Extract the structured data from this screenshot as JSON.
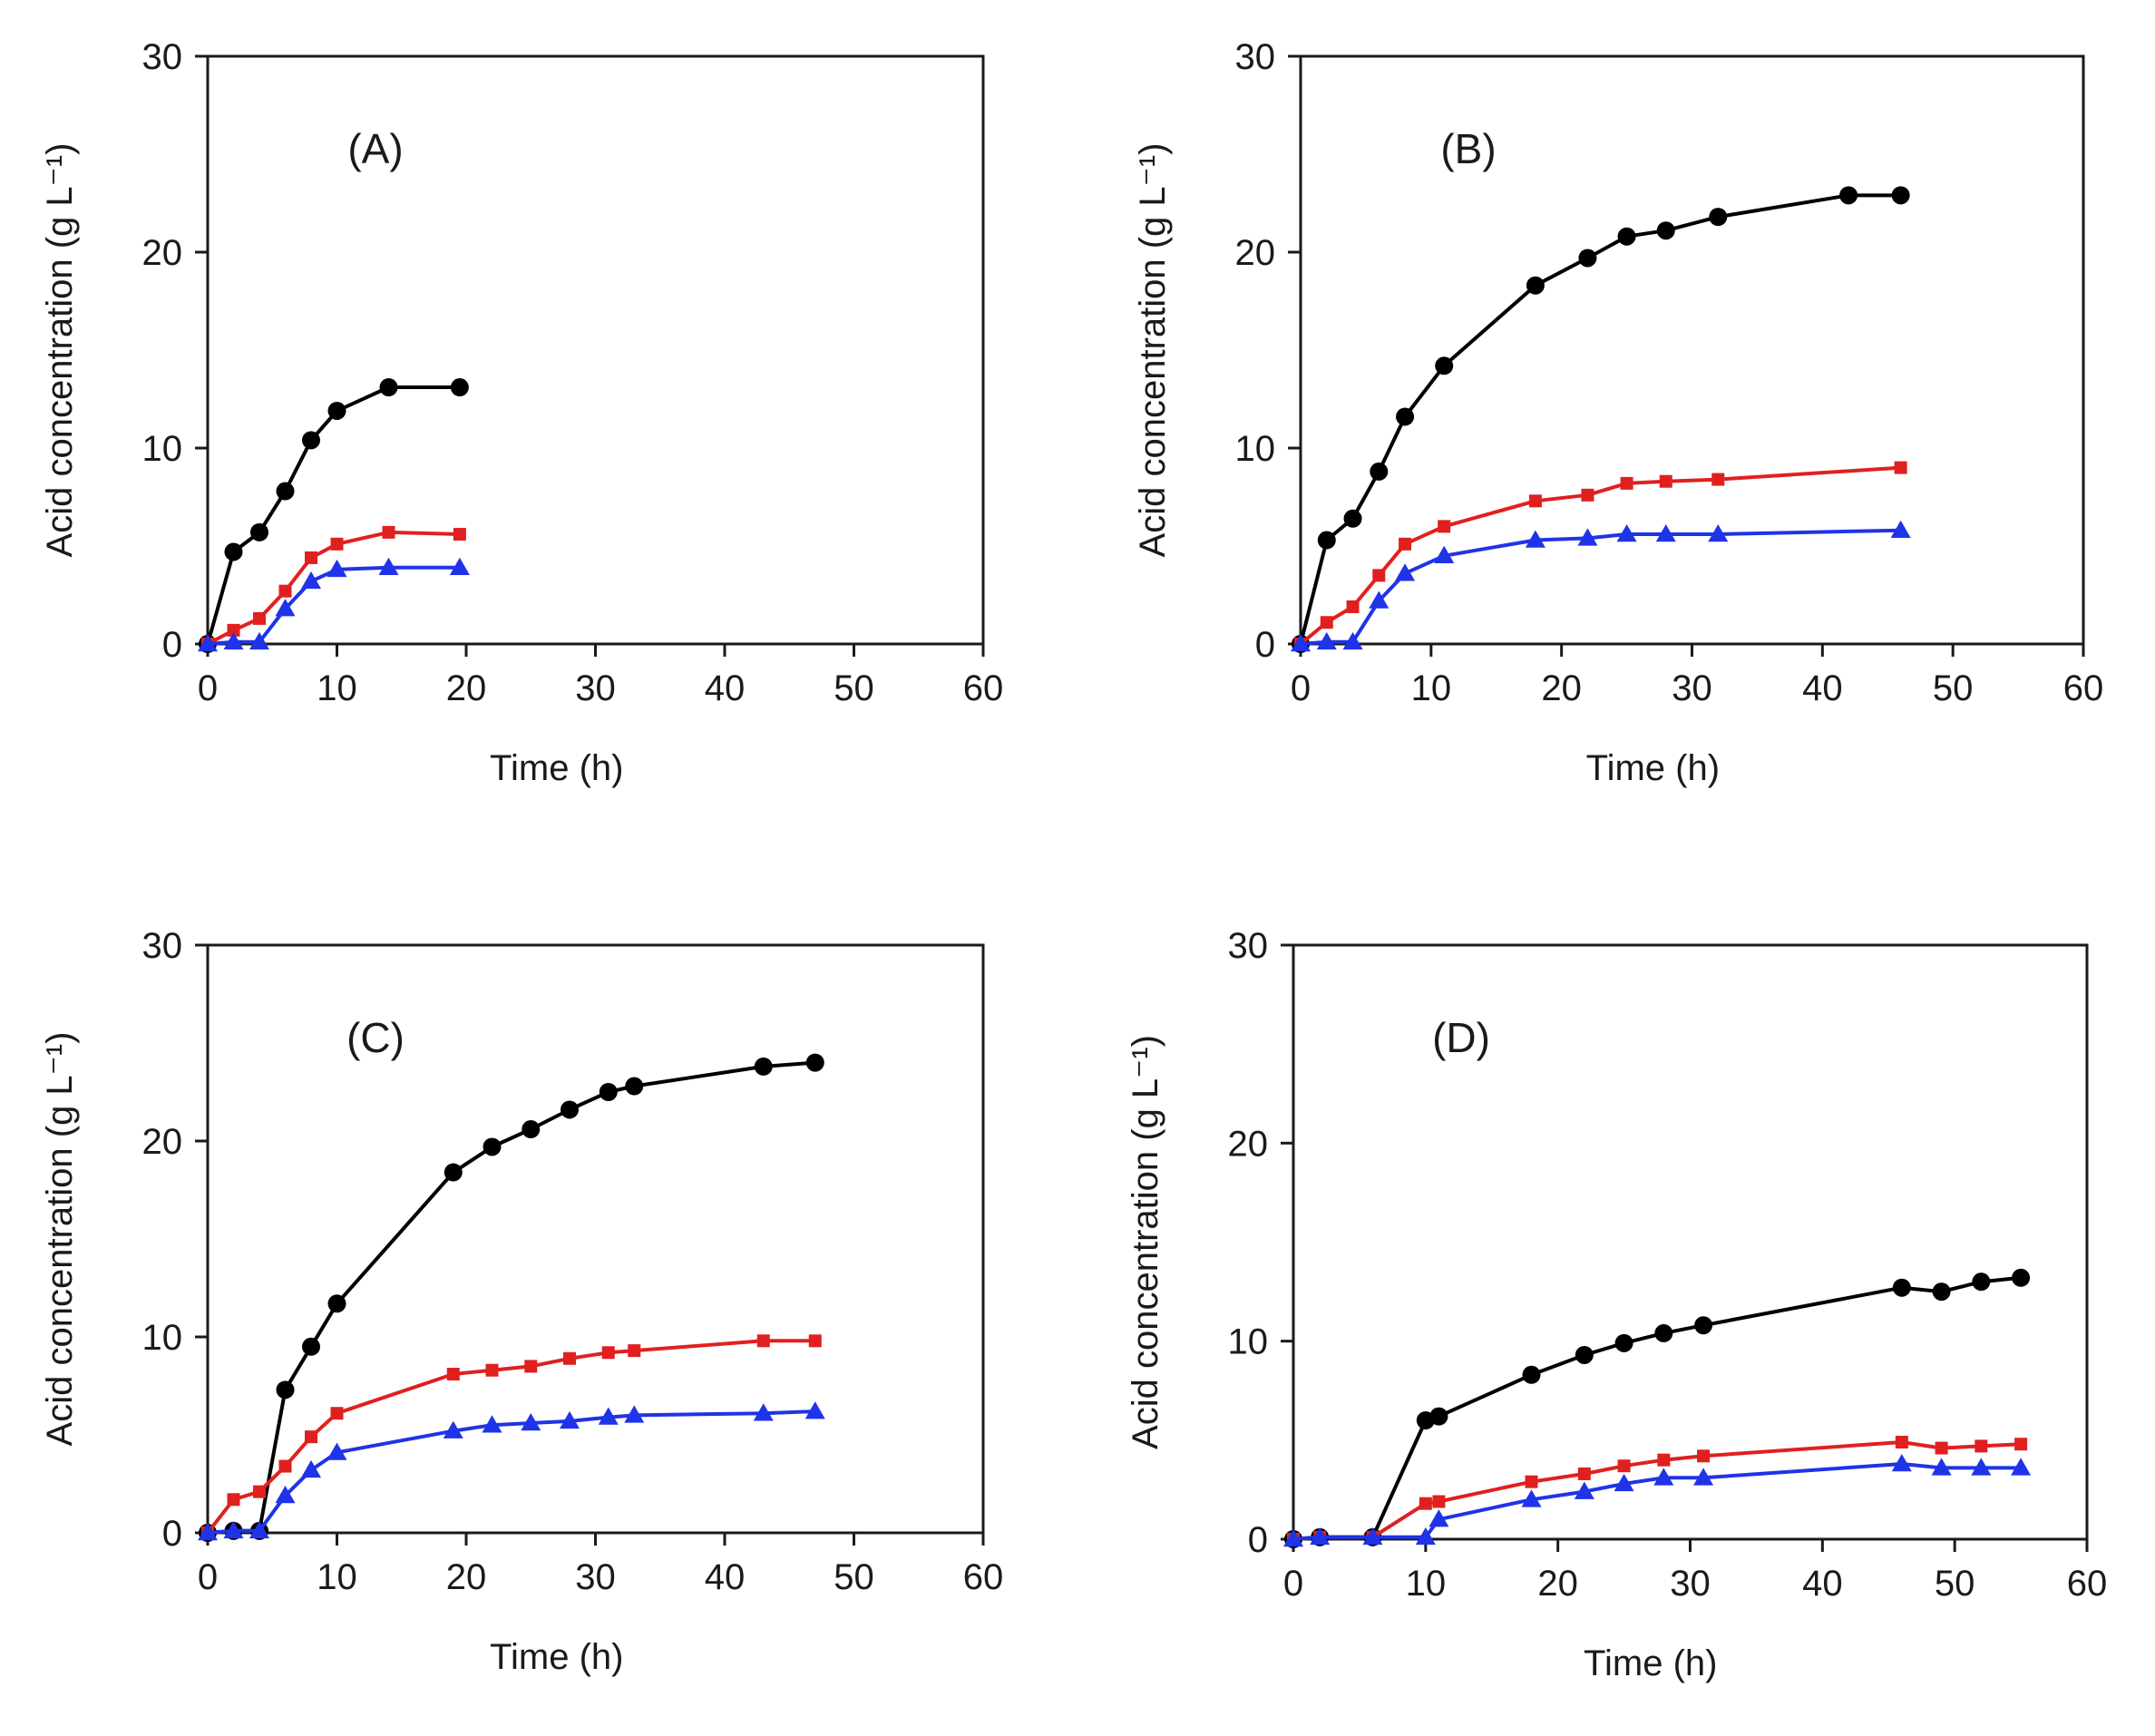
{
  "chart_data": [
    {
      "type": "line",
      "panel_label": "(A)",
      "xlabel": "Time (h)",
      "ylabel": "Acid concentration (g L⁻¹)",
      "xlim": [
        0,
        60
      ],
      "ylim": [
        0,
        30
      ],
      "xticks": [
        "0",
        "10",
        "20",
        "30",
        "40",
        "50",
        "60"
      ],
      "yticks": [
        "0",
        "10",
        "20",
        "30"
      ],
      "series": [
        {
          "name": "black",
          "marker": "circle",
          "color": "#000000",
          "x": [
            0,
            2,
            4,
            6,
            8,
            10,
            14,
            19.5
          ],
          "y": [
            0,
            4.7,
            5.7,
            7.8,
            10.4,
            11.9,
            13.1,
            13.1
          ]
        },
        {
          "name": "red",
          "marker": "square",
          "color": "#e0201f",
          "x": [
            0,
            2,
            4,
            6,
            8,
            10,
            14,
            19.5
          ],
          "y": [
            0,
            0.7,
            1.3,
            2.7,
            4.4,
            5.1,
            5.7,
            5.6
          ]
        },
        {
          "name": "blue",
          "marker": "triangle",
          "color": "#1f33e8",
          "x": [
            0,
            2,
            4,
            6,
            8,
            10,
            14,
            19.5
          ],
          "y": [
            0,
            0.1,
            0.1,
            1.8,
            3.2,
            3.8,
            3.9,
            3.9
          ]
        }
      ]
    },
    {
      "type": "line",
      "panel_label": "(B)",
      "xlabel": "Time (h)",
      "ylabel": "Acid concentration (g L⁻¹)",
      "xlim": [
        0,
        60
      ],
      "ylim": [
        0,
        30
      ],
      "xticks": [
        "0",
        "10",
        "20",
        "30",
        "40",
        "50",
        "60"
      ],
      "yticks": [
        "0",
        "10",
        "20",
        "30"
      ],
      "series": [
        {
          "name": "black",
          "marker": "circle",
          "color": "#000000",
          "x": [
            0,
            2,
            4,
            6,
            8,
            11,
            18,
            22,
            25,
            28,
            32,
            42,
            46
          ],
          "y": [
            0,
            5.3,
            6.4,
            8.8,
            11.6,
            14.2,
            18.3,
            19.7,
            20.8,
            21.1,
            21.8,
            22.9,
            22.9
          ]
        },
        {
          "name": "red",
          "marker": "square",
          "color": "#e0201f",
          "x": [
            0,
            2,
            4,
            6,
            8,
            11,
            18,
            22,
            25,
            28,
            32,
            46
          ],
          "y": [
            0,
            1.1,
            1.9,
            3.5,
            5.1,
            6.0,
            7.3,
            7.6,
            8.2,
            8.3,
            8.4,
            9.0
          ]
        },
        {
          "name": "blue",
          "marker": "triangle",
          "color": "#1f33e8",
          "x": [
            0,
            2,
            4,
            6,
            8,
            11,
            18,
            22,
            25,
            28,
            32,
            46
          ],
          "y": [
            0,
            0.1,
            0.1,
            2.2,
            3.6,
            4.5,
            5.3,
            5.4,
            5.6,
            5.6,
            5.6,
            5.8
          ]
        }
      ]
    },
    {
      "type": "line",
      "panel_label": "(C)",
      "xlabel": "Time (h)",
      "ylabel": "Acid concentration (g L⁻¹)",
      "xlim": [
        0,
        60
      ],
      "ylim": [
        0,
        30
      ],
      "xticks": [
        "0",
        "10",
        "20",
        "30",
        "40",
        "50",
        "60"
      ],
      "yticks": [
        "0",
        "10",
        "20",
        "30"
      ],
      "series": [
        {
          "name": "black",
          "marker": "circle",
          "color": "#000000",
          "x": [
            0,
            2,
            4,
            6,
            8,
            10,
            19,
            22,
            25,
            28,
            31,
            33,
            43,
            47
          ],
          "y": [
            0,
            0.1,
            0.1,
            7.3,
            9.5,
            11.7,
            18.4,
            19.7,
            20.6,
            21.6,
            22.5,
            22.8,
            23.8,
            24.0
          ]
        },
        {
          "name": "red",
          "marker": "square",
          "color": "#e0201f",
          "x": [
            0,
            2,
            4,
            6,
            8,
            10,
            19,
            22,
            25,
            28,
            31,
            33,
            43,
            47
          ],
          "y": [
            0,
            1.7,
            2.1,
            3.4,
            4.9,
            6.1,
            8.1,
            8.3,
            8.5,
            8.9,
            9.2,
            9.3,
            9.8,
            9.8
          ]
        },
        {
          "name": "blue",
          "marker": "triangle",
          "color": "#1f33e8",
          "x": [
            0,
            2,
            4,
            6,
            8,
            10,
            19,
            22,
            25,
            28,
            31,
            33,
            43,
            47
          ],
          "y": [
            0,
            0.1,
            0.1,
            1.9,
            3.2,
            4.1,
            5.2,
            5.5,
            5.6,
            5.7,
            5.9,
            6.0,
            6.1,
            6.2
          ]
        }
      ]
    },
    {
      "type": "line",
      "panel_label": "(D)",
      "xlabel": "Time (h)",
      "ylabel": "Acid concentration (g L⁻¹)",
      "xlim": [
        0,
        60
      ],
      "ylim": [
        0,
        30
      ],
      "xticks": [
        "0",
        "10",
        "20",
        "30",
        "40",
        "50",
        "60"
      ],
      "yticks": [
        "0",
        "10",
        "20",
        "30"
      ],
      "series": [
        {
          "name": "black",
          "marker": "circle",
          "color": "#000000",
          "x": [
            0,
            2,
            6,
            10,
            11,
            18,
            22,
            25,
            28,
            31,
            46,
            49,
            52,
            55
          ],
          "y": [
            0,
            0.1,
            0.1,
            6.0,
            6.2,
            8.3,
            9.3,
            9.9,
            10.4,
            10.8,
            12.7,
            12.5,
            13.0,
            13.2
          ]
        },
        {
          "name": "red",
          "marker": "square",
          "color": "#e0201f",
          "x": [
            0,
            2,
            6,
            10,
            11,
            18,
            22,
            25,
            28,
            31,
            46,
            49,
            52,
            55
          ],
          "y": [
            0,
            0.1,
            0.1,
            1.8,
            1.9,
            2.9,
            3.3,
            3.7,
            4.0,
            4.2,
            4.9,
            4.6,
            4.7,
            4.8
          ]
        },
        {
          "name": "blue",
          "marker": "triangle",
          "color": "#1f33e8",
          "x": [
            0,
            2,
            6,
            10,
            11,
            18,
            22,
            25,
            28,
            31,
            46,
            49,
            52,
            55
          ],
          "y": [
            0,
            0.1,
            0.1,
            0.1,
            1.0,
            2.0,
            2.4,
            2.8,
            3.1,
            3.1,
            3.8,
            3.6,
            3.6,
            3.6
          ]
        }
      ]
    }
  ]
}
